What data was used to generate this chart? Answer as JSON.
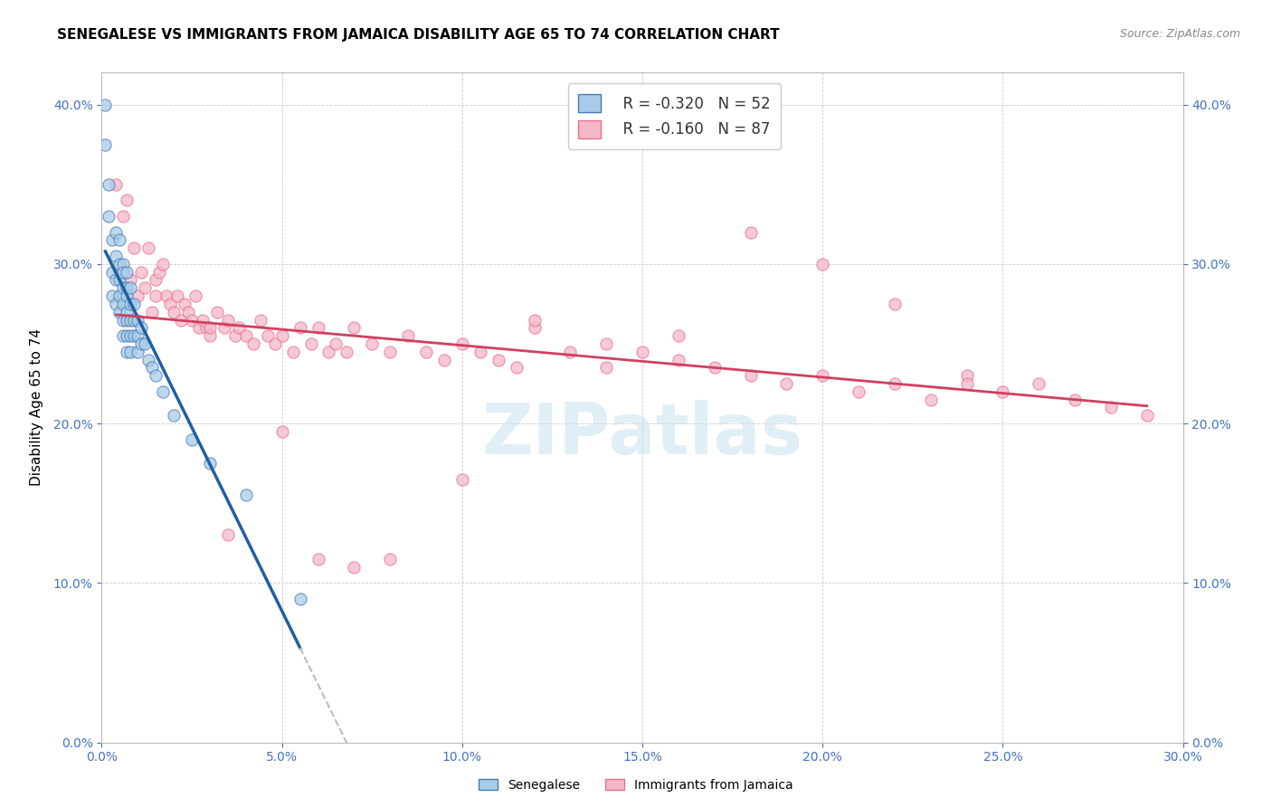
{
  "title": "SENEGALESE VS IMMIGRANTS FROM JAMAICA DISABILITY AGE 65 TO 74 CORRELATION CHART",
  "source": "Source: ZipAtlas.com",
  "ylabel_label": "Disability Age 65 to 74",
  "x_min": 0.0,
  "x_max": 0.3,
  "y_min": 0.0,
  "y_max": 0.42,
  "legend_r1": "R = -0.320",
  "legend_n1": "N = 52",
  "legend_r2": "R = -0.160",
  "legend_n2": "N = 87",
  "color_blue": "#a8cce8",
  "color_pink": "#f4b8c8",
  "color_blue_line": "#4a7ab5",
  "color_pink_line": "#e8708a",
  "color_blue_dark": "#2060a0",
  "color_pink_dark": "#d04060",
  "watermark": "ZIPatlas",
  "title_fontsize": 11,
  "axis_label_fontsize": 11,
  "tick_fontsize": 10,
  "legend_fontsize": 12,
  "senegalese_x": [
    0.001,
    0.001,
    0.002,
    0.002,
    0.003,
    0.003,
    0.003,
    0.004,
    0.004,
    0.004,
    0.004,
    0.005,
    0.005,
    0.005,
    0.005,
    0.005,
    0.006,
    0.006,
    0.006,
    0.006,
    0.006,
    0.006,
    0.007,
    0.007,
    0.007,
    0.007,
    0.007,
    0.007,
    0.007,
    0.008,
    0.008,
    0.008,
    0.008,
    0.008,
    0.009,
    0.009,
    0.009,
    0.01,
    0.01,
    0.01,
    0.011,
    0.011,
    0.012,
    0.013,
    0.014,
    0.015,
    0.017,
    0.02,
    0.025,
    0.03,
    0.04,
    0.055
  ],
  "senegalese_y": [
    0.4,
    0.375,
    0.35,
    0.33,
    0.315,
    0.295,
    0.28,
    0.32,
    0.305,
    0.29,
    0.275,
    0.315,
    0.3,
    0.29,
    0.28,
    0.27,
    0.3,
    0.295,
    0.285,
    0.275,
    0.265,
    0.255,
    0.295,
    0.285,
    0.28,
    0.27,
    0.265,
    0.255,
    0.245,
    0.285,
    0.275,
    0.265,
    0.255,
    0.245,
    0.275,
    0.265,
    0.255,
    0.265,
    0.255,
    0.245,
    0.26,
    0.25,
    0.25,
    0.24,
    0.235,
    0.23,
    0.22,
    0.205,
    0.19,
    0.175,
    0.155,
    0.09
  ],
  "jamaica_x": [
    0.004,
    0.006,
    0.007,
    0.008,
    0.009,
    0.01,
    0.011,
    0.012,
    0.013,
    0.014,
    0.015,
    0.015,
    0.016,
    0.017,
    0.018,
    0.019,
    0.02,
    0.021,
    0.022,
    0.023,
    0.024,
    0.025,
    0.026,
    0.027,
    0.028,
    0.029,
    0.03,
    0.032,
    0.034,
    0.035,
    0.037,
    0.038,
    0.04,
    0.042,
    0.044,
    0.046,
    0.048,
    0.05,
    0.053,
    0.055,
    0.058,
    0.06,
    0.063,
    0.065,
    0.068,
    0.07,
    0.075,
    0.08,
    0.085,
    0.09,
    0.095,
    0.1,
    0.105,
    0.11,
    0.115,
    0.12,
    0.13,
    0.14,
    0.15,
    0.16,
    0.17,
    0.18,
    0.19,
    0.2,
    0.21,
    0.22,
    0.23,
    0.24,
    0.25,
    0.26,
    0.27,
    0.28,
    0.29,
    0.12,
    0.14,
    0.16,
    0.18,
    0.2,
    0.22,
    0.24,
    0.08,
    0.1,
    0.05,
    0.06,
    0.07,
    0.03,
    0.035
  ],
  "jamaica_y": [
    0.35,
    0.33,
    0.34,
    0.29,
    0.31,
    0.28,
    0.295,
    0.285,
    0.31,
    0.27,
    0.29,
    0.28,
    0.295,
    0.3,
    0.28,
    0.275,
    0.27,
    0.28,
    0.265,
    0.275,
    0.27,
    0.265,
    0.28,
    0.26,
    0.265,
    0.26,
    0.255,
    0.27,
    0.26,
    0.265,
    0.255,
    0.26,
    0.255,
    0.25,
    0.265,
    0.255,
    0.25,
    0.255,
    0.245,
    0.26,
    0.25,
    0.26,
    0.245,
    0.25,
    0.245,
    0.26,
    0.25,
    0.245,
    0.255,
    0.245,
    0.24,
    0.25,
    0.245,
    0.24,
    0.235,
    0.26,
    0.245,
    0.235,
    0.245,
    0.24,
    0.235,
    0.23,
    0.225,
    0.23,
    0.22,
    0.225,
    0.215,
    0.23,
    0.22,
    0.225,
    0.215,
    0.21,
    0.205,
    0.265,
    0.25,
    0.255,
    0.32,
    0.3,
    0.275,
    0.225,
    0.115,
    0.165,
    0.195,
    0.115,
    0.11,
    0.26,
    0.13
  ]
}
